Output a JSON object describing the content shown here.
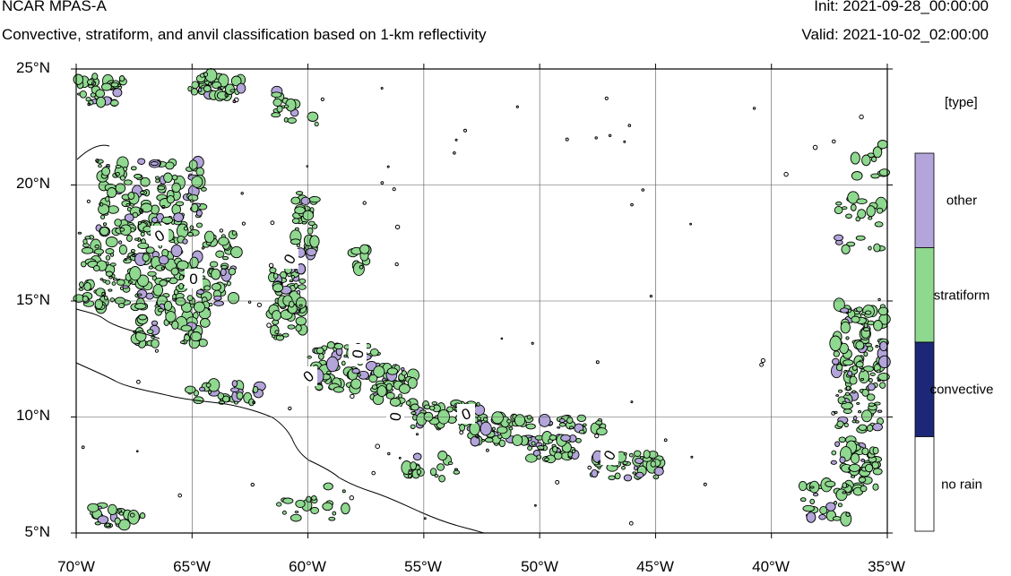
{
  "header": {
    "title": "NCAR MPAS-A",
    "subtitle": "Convective, stratiform, and anvil classification based on 1-km reflectivity",
    "init": "Init: 2021-09-28_00:00:00",
    "valid": "Valid: 2021-10-02_02:00:00"
  },
  "map": {
    "lat_labels": [
      "25°N",
      "20°N",
      "15°N",
      "10°N",
      "5°N"
    ],
    "lon_labels": [
      "70°W",
      "65°W",
      "60°W",
      "55°W",
      "50°W",
      "45°W",
      "40°W",
      "35°W"
    ],
    "lat_range": [
      5,
      25
    ],
    "lon_range": [
      -70,
      -35
    ],
    "grid": true,
    "contour_labels": [
      "0",
      "0",
      "0",
      "0",
      "0",
      "0",
      "0"
    ]
  },
  "legend": {
    "title": "[type]",
    "categories": [
      {
        "label": "other",
        "color": "#b3a4da"
      },
      {
        "label": "stratiform",
        "color": "#8fd88f"
      },
      {
        "label": "convective",
        "color": "#1c2777"
      },
      {
        "label": "no rain",
        "color": "#ffffff"
      }
    ]
  }
}
